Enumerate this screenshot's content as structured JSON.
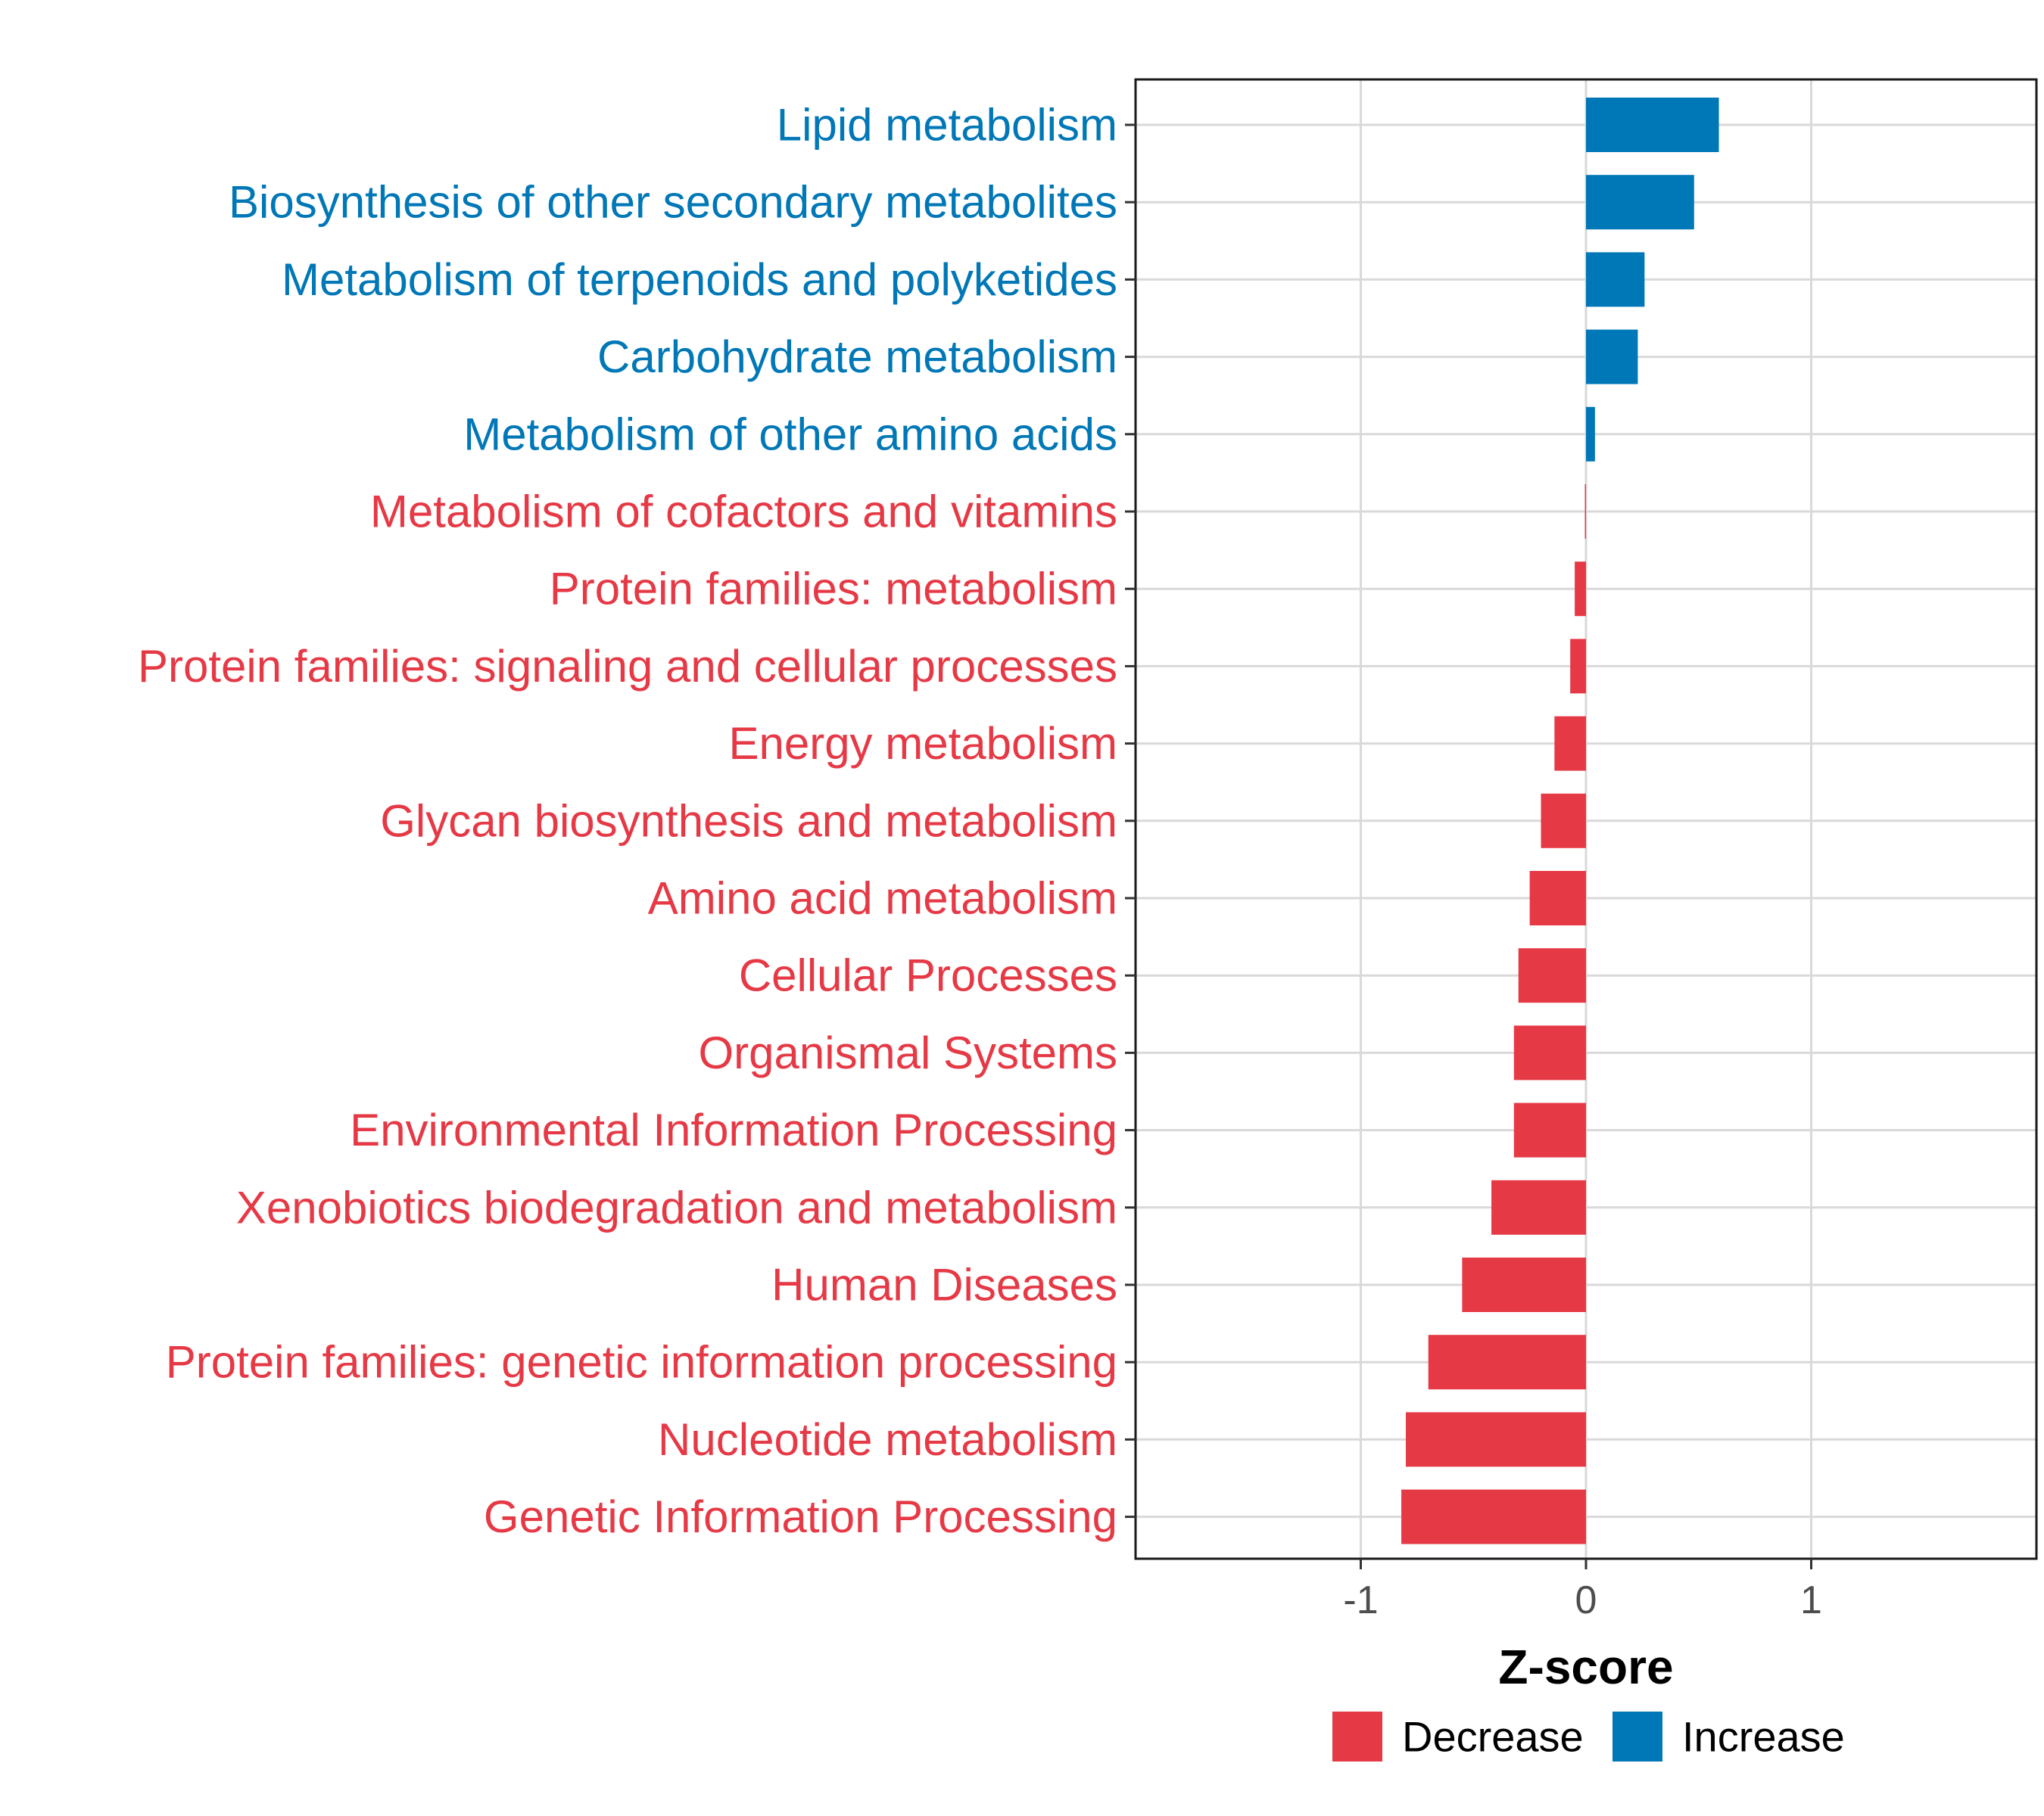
{
  "chart_data": {
    "type": "bar",
    "orientation": "horizontal",
    "xlabel": "Z-score",
    "ylabel": "",
    "xlim": [
      -2.0,
      2.0
    ],
    "xticks": [
      -1,
      0,
      1
    ],
    "xtick_labels": [
      "-1",
      "0",
      "1"
    ],
    "grid": true,
    "categories": [
      "Lipid metabolism",
      "Biosynthesis of other secondary metabolites",
      "Metabolism of terpenoids and polyketides",
      "Carbohydrate metabolism",
      "Metabolism of other amino acids",
      "Metabolism of cofactors and vitamins",
      "Protein families: metabolism",
      "Protein families: signaling and cellular processes",
      "Energy metabolism",
      "Glycan biosynthesis and metabolism",
      "Amino acid metabolism",
      "Cellular Processes",
      "Organismal Systems",
      "Environmental Information Processing",
      "Xenobiotics biodegradation and metabolism",
      "Human Diseases",
      "Protein families: genetic information processing",
      "Nucleotide metabolism",
      "Genetic Information Processing"
    ],
    "values": [
      0.59,
      0.48,
      0.26,
      0.23,
      0.04,
      -0.005,
      -0.05,
      -0.07,
      -0.14,
      -0.2,
      -0.25,
      -0.3,
      -0.32,
      -0.32,
      -0.42,
      -0.55,
      -0.7,
      -0.8,
      -0.82
    ],
    "legend": {
      "position": "bottom",
      "items": [
        {
          "label": "Decrease",
          "color": "#E63946"
        },
        {
          "label": "Increase",
          "color": "#0077B6"
        }
      ]
    },
    "colors": {
      "decrease": "#E63946",
      "increase": "#0077B6"
    }
  }
}
